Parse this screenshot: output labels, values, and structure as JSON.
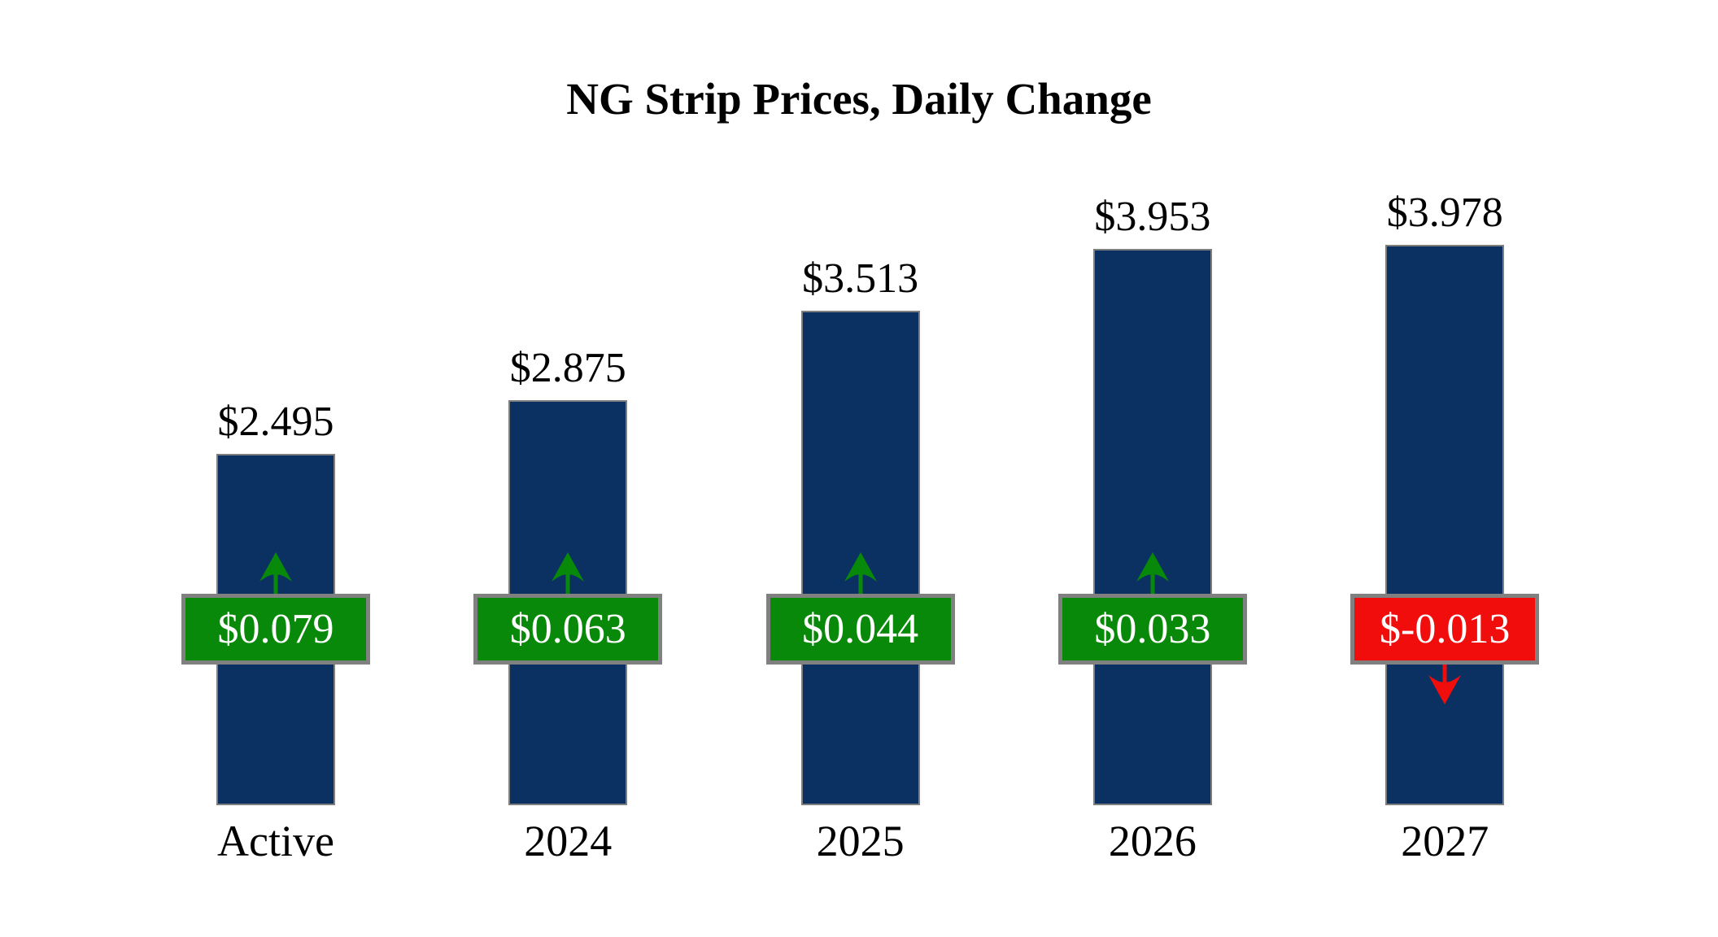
{
  "chart_data": {
    "type": "bar",
    "title": "NG Strip Prices, Daily Change",
    "categories": [
      "Active",
      "2024",
      "2025",
      "2026",
      "2027"
    ],
    "series": [
      {
        "name": "Strip Price",
        "values": [
          2.495,
          2.875,
          3.513,
          3.953,
          3.978
        ],
        "labels": [
          "$2.495",
          "$2.875",
          "$3.513",
          "$3.953",
          "$3.978"
        ]
      },
      {
        "name": "Daily Change",
        "values": [
          0.079,
          0.063,
          0.044,
          0.033,
          -0.013
        ],
        "labels": [
          "$0.079",
          "$0.063",
          "$0.044",
          "$0.033",
          "$-0.013"
        ]
      }
    ],
    "ylim": [
      0,
      4.3
    ],
    "grid": false,
    "axes_visible": false,
    "legend_position": "none"
  },
  "colors": {
    "background": "#ffffff",
    "bar_fill": "#0a3161",
    "bar_border": "#7f7f7f",
    "positive": "#098909",
    "negative": "#f20d0d",
    "badge_border": "#808080",
    "badge_text": "#ffffff",
    "label_text": "#000000"
  }
}
